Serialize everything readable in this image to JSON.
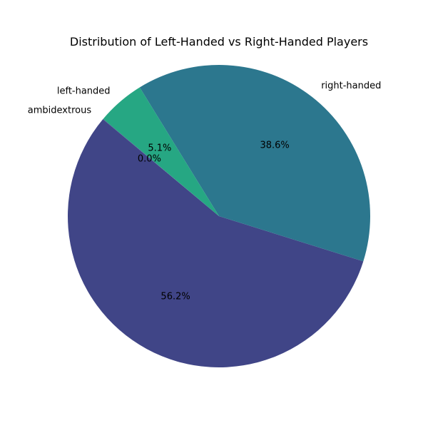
{
  "chart_data": {
    "type": "pie",
    "title": "Distribution of Left-Handed vs Right-Handed Players",
    "start_angle_deg": 140,
    "direction": "counterclockwise",
    "slices": [
      {
        "label": "ambidextrous",
        "value": 0.05,
        "pct_label": "0.0%",
        "color": "#3b528b"
      },
      {
        "label": "",
        "value": 56.2,
        "pct_label": "56.2%",
        "color": "#404587"
      },
      {
        "label": "right-handed",
        "value": 38.6,
        "pct_label": "38.6%",
        "color": "#2c778e"
      },
      {
        "label": "left-handed",
        "value": 5.1,
        "pct_label": "5.1%",
        "color": "#26a783"
      }
    ]
  }
}
